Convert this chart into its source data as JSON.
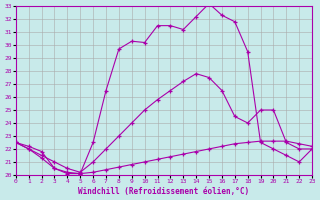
{
  "xlabel": "Windchill (Refroidissement éolien,°C)",
  "bg_color": "#c8eaea",
  "line_color": "#aa00aa",
  "grid_color": "#aaaaaa",
  "ylim": [
    20,
    33
  ],
  "xlim": [
    0,
    23
  ],
  "yticks": [
    20,
    21,
    22,
    23,
    24,
    25,
    26,
    27,
    28,
    29,
    30,
    31,
    32,
    33
  ],
  "xticks": [
    0,
    1,
    2,
    3,
    4,
    5,
    6,
    7,
    8,
    9,
    10,
    11,
    12,
    13,
    14,
    15,
    16,
    17,
    18,
    19,
    20,
    21,
    22,
    23
  ],
  "line1_x": [
    0,
    1,
    2,
    3,
    4,
    5,
    6,
    7,
    8,
    9,
    10,
    11,
    12,
    13,
    14,
    15,
    16,
    17,
    18,
    19,
    20,
    21,
    22,
    23
  ],
  "line1_y": [
    22.5,
    22.2,
    21.8,
    20.5,
    20.1,
    20.1,
    22.5,
    26.5,
    29.7,
    30.3,
    30.2,
    31.5,
    31.5,
    31.2,
    32.2,
    33.2,
    32.3,
    31.8,
    29.5,
    22.5,
    22.0,
    21.5,
    21.0,
    22.0
  ],
  "line2_x": [
    0,
    1,
    2,
    3,
    4,
    5,
    6,
    7,
    8,
    9,
    10,
    11,
    12,
    13,
    14,
    15,
    16,
    17,
    18,
    19,
    20,
    21,
    22,
    23
  ],
  "line2_y": [
    22.5,
    22.0,
    21.5,
    21.0,
    20.5,
    20.2,
    21.0,
    22.0,
    23.0,
    24.0,
    25.0,
    25.8,
    26.5,
    27.2,
    27.8,
    27.5,
    26.5,
    24.5,
    24.0,
    25.0,
    25.0,
    22.5,
    22.0,
    22.0
  ],
  "line3_x": [
    0,
    1,
    2,
    3,
    4,
    5,
    6,
    7,
    8,
    9,
    10,
    11,
    12,
    13,
    14,
    15,
    16,
    17,
    18,
    19,
    20,
    21,
    22,
    23
  ],
  "line3_y": [
    22.5,
    22.0,
    21.3,
    20.5,
    20.2,
    20.1,
    20.2,
    20.4,
    20.6,
    20.8,
    21.0,
    21.2,
    21.4,
    21.6,
    21.8,
    22.0,
    22.2,
    22.4,
    22.5,
    22.6,
    22.6,
    22.6,
    22.4,
    22.2
  ]
}
